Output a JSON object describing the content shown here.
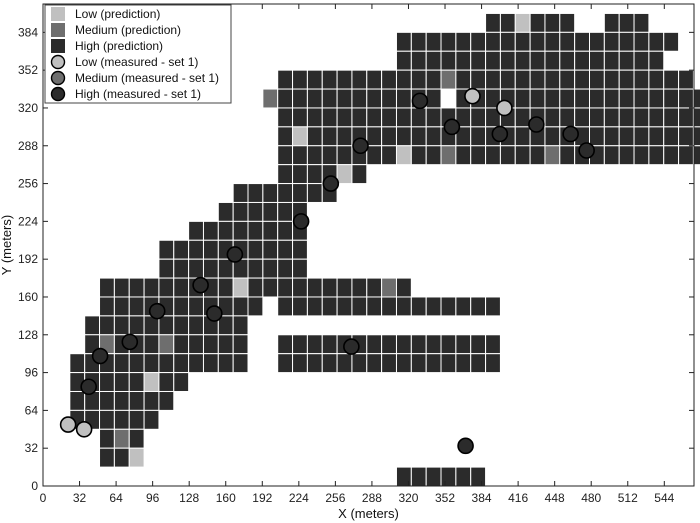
{
  "chart_data": {
    "type": "scatter",
    "xlabel": "X (meters)",
    "ylabel": "Y (meters)",
    "xlim": [
      0,
      570
    ],
    "ylim": [
      0,
      408
    ],
    "x_ticks": [
      0,
      32,
      64,
      96,
      128,
      160,
      192,
      224,
      256,
      288,
      320,
      352,
      384,
      416,
      448,
      480,
      512,
      544
    ],
    "y_ticks": [
      0,
      32,
      64,
      96,
      128,
      160,
      192,
      224,
      256,
      288,
      320,
      352,
      384
    ],
    "cell_size": 16,
    "grid": false,
    "legend_position": "top-left",
    "colors": {
      "low": "#c0c0c0",
      "medium": "#6e6e6e",
      "high": "#2b2b2b",
      "cell_border": "#ffffff"
    },
    "legend": [
      {
        "label": "Low (prediction)",
        "kind": "square",
        "class": "low"
      },
      {
        "label": "Medium (prediction)",
        "kind": "square",
        "class": "medium"
      },
      {
        "label": "High (prediction)",
        "kind": "square",
        "class": "high"
      },
      {
        "label": "Low (measured - set 1)",
        "kind": "circle",
        "class": "low"
      },
      {
        "label": "Medium (measured - set 1)",
        "kind": "circle",
        "class": "medium"
      },
      {
        "label": "High (measured - set 1)",
        "kind": "circle",
        "class": "high"
      }
    ],
    "prediction_rows": [
      {
        "y": 392,
        "runs": [
          [
            448,
            480
          ],
          [
            496,
            528
          ],
          [
            576,
            608
          ]
        ]
      },
      {
        "y": 376,
        "runs": [
          [
            352,
            640
          ]
        ]
      },
      {
        "y": 360,
        "runs": [
          [
            352,
            368
          ],
          [
            384,
            624
          ]
        ]
      },
      {
        "y": 344,
        "runs": [
          [
            224,
            384
          ],
          [
            400,
            656
          ]
        ]
      },
      {
        "y": 328,
        "runs": [
          [
            208,
            208
          ],
          [
            224,
            384
          ],
          [
            416,
            672
          ]
        ]
      },
      {
        "y": 312,
        "runs": [
          [
            224,
            672
          ]
        ]
      },
      {
        "y": 296,
        "runs": [
          [
            224,
            672
          ]
        ]
      },
      {
        "y": 280,
        "runs": [
          [
            224,
            672
          ]
        ]
      },
      {
        "y": 264,
        "runs": [
          [
            224,
            272
          ],
          [
            288,
            304
          ]
        ]
      },
      {
        "y": 248,
        "runs": [
          [
            176,
            272
          ]
        ]
      },
      {
        "y": 232,
        "runs": [
          [
            160,
            240
          ]
        ]
      },
      {
        "y": 216,
        "runs": [
          [
            128,
            240
          ]
        ]
      },
      {
        "y": 200,
        "runs": [
          [
            96,
            240
          ]
        ]
      },
      {
        "y": 184,
        "runs": [
          [
            96,
            208
          ],
          [
            224,
            240
          ]
        ]
      },
      {
        "y": 168,
        "runs": [
          [
            32,
            64
          ],
          [
            80,
            208
          ],
          [
            224,
            352
          ]
        ]
      },
      {
        "y": 152,
        "runs": [
          [
            32,
            64
          ],
          [
            80,
            192
          ],
          [
            224,
            448
          ]
        ]
      },
      {
        "y": 136,
        "runs": [
          [
            16,
            176
          ]
        ]
      },
      {
        "y": 120,
        "runs": [
          [
            16,
            176
          ],
          [
            224,
            448
          ]
        ]
      },
      {
        "y": 104,
        "runs": [
          [
            0,
            176
          ],
          [
            224,
            448
          ]
        ]
      },
      {
        "y": 88,
        "runs": [
          [
            0,
            32
          ],
          [
            48,
            112
          ]
        ]
      },
      {
        "y": 72,
        "runs": [
          [
            0,
            32
          ],
          [
            48,
            96
          ]
        ]
      },
      {
        "y": 56,
        "runs": [
          [
            0,
            80
          ]
        ]
      },
      {
        "y": 40,
        "runs": [
          [
            32,
            64
          ]
        ]
      },
      {
        "y": 24,
        "runs": [
          [
            32,
            64
          ]
        ]
      },
      {
        "y": 8,
        "runs": [
          [
            352,
            368
          ],
          [
            384,
            432
          ]
        ]
      }
    ],
    "prediction_exceptions": [
      {
        "x": 384,
        "y": 392,
        "level": "low"
      },
      {
        "x": 480,
        "y": 392,
        "level": "low"
      },
      {
        "x": 400,
        "y": 344,
        "level": "medium"
      },
      {
        "x": 208,
        "y": 328,
        "level": "medium"
      },
      {
        "x": 240,
        "y": 296,
        "level": "low"
      },
      {
        "x": 352,
        "y": 280,
        "level": "low"
      },
      {
        "x": 400,
        "y": 280,
        "level": "medium"
      },
      {
        "x": 512,
        "y": 280,
        "level": "medium"
      },
      {
        "x": 288,
        "y": 264,
        "level": "low"
      },
      {
        "x": 176,
        "y": 168,
        "level": "low"
      },
      {
        "x": 336,
        "y": 168,
        "level": "medium"
      },
      {
        "x": 32,
        "y": 120,
        "level": "medium"
      },
      {
        "x": 96,
        "y": 120,
        "level": "medium"
      },
      {
        "x": 80,
        "y": 88,
        "level": "low"
      },
      {
        "x": 48,
        "y": 40,
        "level": "medium"
      },
      {
        "x": 64,
        "y": 24,
        "level": "low"
      }
    ],
    "measured": [
      {
        "x": 22,
        "y": 52,
        "level": "low"
      },
      {
        "x": 36,
        "y": 48,
        "level": "low"
      },
      {
        "x": 40,
        "y": 84,
        "level": "high"
      },
      {
        "x": 50,
        "y": 110,
        "level": "high"
      },
      {
        "x": 76,
        "y": 122,
        "level": "high"
      },
      {
        "x": 100,
        "y": 148,
        "level": "high"
      },
      {
        "x": 138,
        "y": 170,
        "level": "high"
      },
      {
        "x": 150,
        "y": 146,
        "level": "high"
      },
      {
        "x": 168,
        "y": 196,
        "level": "high"
      },
      {
        "x": 226,
        "y": 224,
        "level": "high"
      },
      {
        "x": 252,
        "y": 256,
        "level": "high"
      },
      {
        "x": 278,
        "y": 288,
        "level": "high"
      },
      {
        "x": 270,
        "y": 118,
        "level": "high"
      },
      {
        "x": 330,
        "y": 326,
        "level": "high"
      },
      {
        "x": 358,
        "y": 304,
        "level": "high"
      },
      {
        "x": 376,
        "y": 330,
        "level": "low"
      },
      {
        "x": 400,
        "y": 298,
        "level": "high"
      },
      {
        "x": 404,
        "y": 320,
        "level": "low"
      },
      {
        "x": 432,
        "y": 306,
        "level": "high"
      },
      {
        "x": 462,
        "y": 298,
        "level": "high"
      },
      {
        "x": 476,
        "y": 284,
        "level": "high"
      },
      {
        "x": 370,
        "y": 34,
        "level": "high"
      }
    ]
  }
}
